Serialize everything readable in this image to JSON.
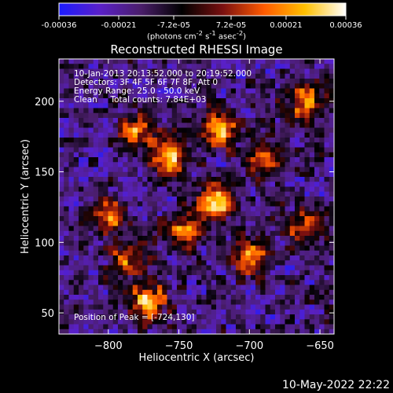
{
  "colorbar": {
    "colors": [
      "#1b1bff",
      "#5a20c8",
      "#4a1e6a",
      "#000000",
      "#7a1010",
      "#ff5a00",
      "#ffc000",
      "#ffffff"
    ],
    "ticks": [
      {
        "value": -0.00036,
        "label": "-0.00036"
      },
      {
        "value": -0.00021,
        "label": "-0.00021"
      },
      {
        "value": -7.2e-05,
        "label": "-7.2e-05"
      },
      {
        "value": 7.2e-05,
        "label": "7.2e-05"
      },
      {
        "value": 0.00021,
        "label": "0.00021"
      },
      {
        "value": 0.00036,
        "label": "0.00036"
      }
    ],
    "range": [
      -0.00036,
      0.00036
    ],
    "unit_label": "(photons cm<sup>-2</sup> s<sup>-1</sup> asec<sup>-2</sup>)"
  },
  "chart_data": {
    "type": "heatmap",
    "title": "Reconstructed RHESSI Image",
    "xlabel": "Heliocentric X (arcsec)",
    "ylabel": "Heliocentric Y (arcsec)",
    "xlim": [
      -835,
      -640
    ],
    "ylim": [
      35,
      230
    ],
    "xticks": [
      {
        "value": -800,
        "label": "−800"
      },
      {
        "value": -750,
        "label": "−750"
      },
      {
        "value": -700,
        "label": "−700"
      },
      {
        "value": -650,
        "label": "−650"
      }
    ],
    "yticks": [
      {
        "value": 50,
        "label": "50"
      },
      {
        "value": 100,
        "label": "100"
      },
      {
        "value": 150,
        "label": "150"
      },
      {
        "value": 200,
        "label": "200"
      }
    ],
    "peaks": [
      {
        "x": -724,
        "y": 130,
        "value": 0.00034
      },
      {
        "x": -772,
        "y": 58,
        "value": 0.0003
      },
      {
        "x": -757,
        "y": 160,
        "value": 0.00026
      },
      {
        "x": -720,
        "y": 180,
        "value": 0.00022
      },
      {
        "x": -690,
        "y": 160,
        "value": 0.00018
      },
      {
        "x": -700,
        "y": 90,
        "value": 0.0002
      },
      {
        "x": -660,
        "y": 200,
        "value": 0.00018
      },
      {
        "x": -800,
        "y": 118,
        "value": 0.00018
      },
      {
        "x": -780,
        "y": 180,
        "value": 0.00016
      },
      {
        "x": -745,
        "y": 108,
        "value": 0.0002
      },
      {
        "x": -785,
        "y": 88,
        "value": 0.00014
      },
      {
        "x": -660,
        "y": 110,
        "value": 0.00014
      }
    ],
    "annotations": {
      "line1": "10-Jan-2013 20:13:52.000 to 20:19:52.000",
      "line2": "Detectors: 3F 4F 5F 6F 7F 8F, Att 0",
      "line3": "Energy Range: 25.0 - 50.0 keV",
      "line4": "Clean     Total counts: 7.84E+03",
      "peak": "Position of Peak = [-724,130]"
    }
  },
  "footer": {
    "timestamp": "10-May-2022 22:22"
  }
}
